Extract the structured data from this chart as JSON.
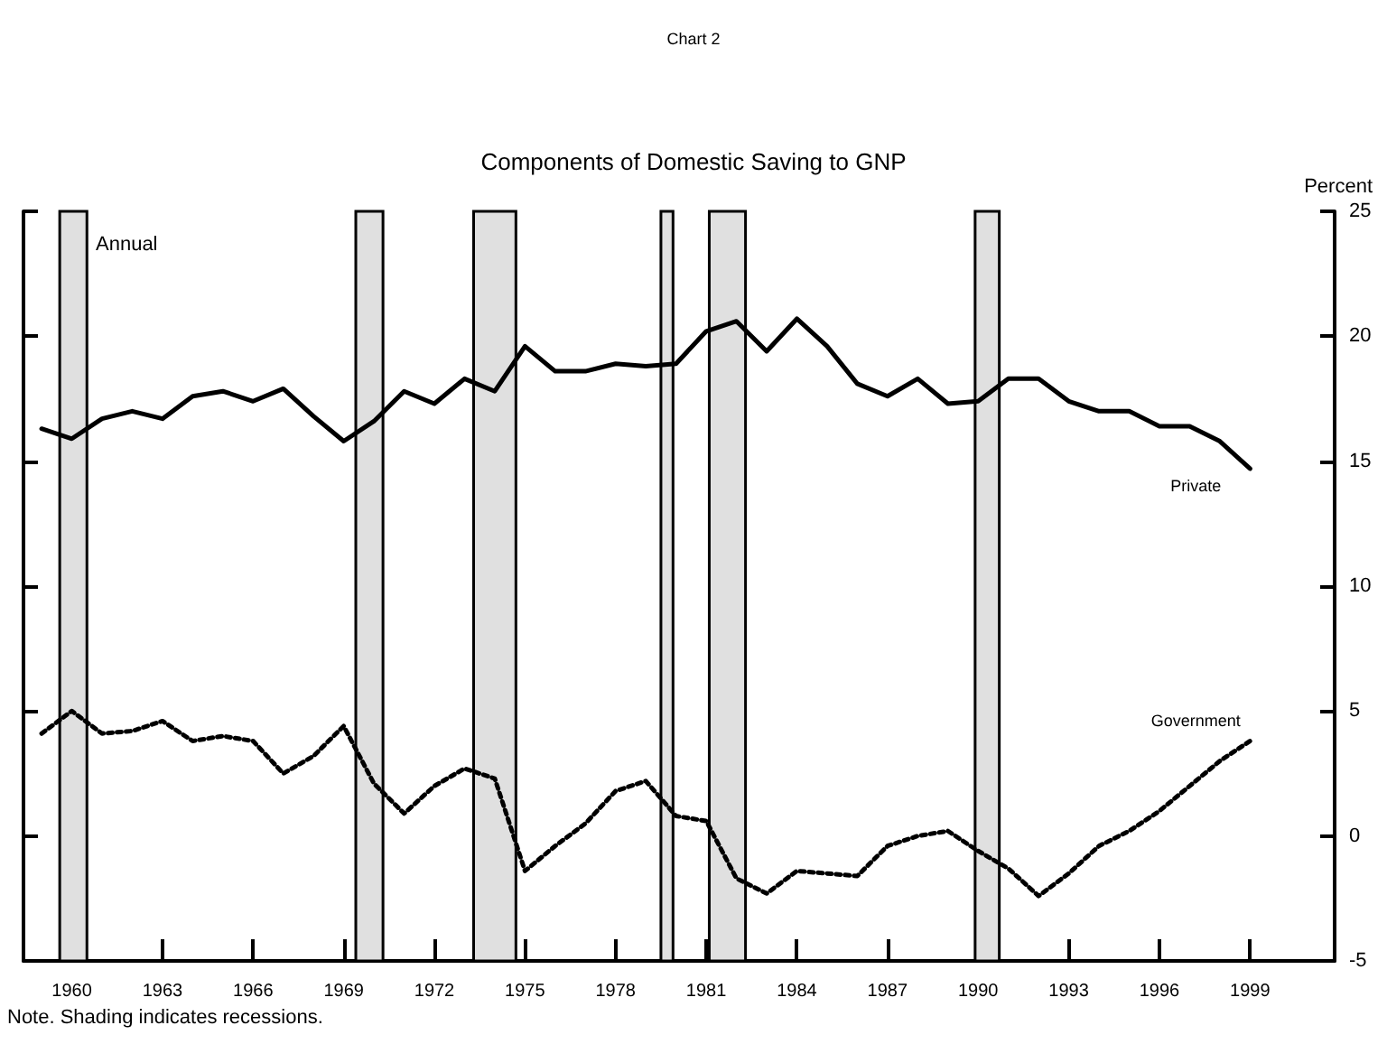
{
  "chart_data": {
    "type": "line",
    "title": "Chart 2",
    "subtitle": "Components of Domestic Saving to GNP",
    "ylabel": "Percent",
    "annotations": [
      "Annual",
      "Note. Shading indicates recessions."
    ],
    "x": [
      1959,
      1960,
      1961,
      1962,
      1963,
      1964,
      1965,
      1966,
      1967,
      1968,
      1969,
      1970,
      1971,
      1972,
      1973,
      1974,
      1975,
      1976,
      1977,
      1978,
      1979,
      1980,
      1981,
      1982,
      1983,
      1984,
      1985,
      1986,
      1987,
      1988,
      1989,
      1990,
      1991,
      1992,
      1993,
      1994,
      1995,
      1996,
      1997,
      1998,
      1999
    ],
    "series": [
      {
        "name": "Private",
        "color": "#000000",
        "line_style": "solid",
        "values": [
          16.3,
          15.9,
          16.7,
          17.0,
          16.7,
          17.6,
          17.8,
          17.4,
          17.9,
          16.8,
          15.8,
          16.6,
          17.8,
          17.3,
          18.3,
          17.8,
          19.6,
          18.6,
          18.6,
          18.9,
          18.8,
          18.9,
          20.2,
          20.6,
          19.4,
          20.7,
          19.6,
          18.1,
          17.6,
          18.3,
          17.3,
          17.4,
          18.3,
          18.3,
          17.4,
          17.0,
          17.0,
          16.4,
          16.4,
          15.8,
          14.7
        ]
      },
      {
        "name": "Government",
        "color": "#000000",
        "line_style": "dotted",
        "values": [
          4.1,
          5.0,
          4.1,
          4.2,
          4.6,
          3.8,
          4.0,
          3.8,
          2.5,
          3.2,
          4.4,
          2.1,
          0.9,
          2.0,
          2.7,
          2.3,
          -1.4,
          -0.4,
          0.5,
          1.8,
          2.2,
          0.8,
          0.6,
          -1.7,
          -2.3,
          -1.4,
          -1.5,
          -1.6,
          -0.4,
          0.0,
          0.2,
          -0.6,
          -1.3,
          -2.4,
          -1.5,
          -0.4,
          0.2,
          1.0,
          2.0,
          3.0,
          3.8
        ]
      }
    ],
    "xlim": [
      1958.4,
      2001.8
    ],
    "xticks": [
      1960,
      1963,
      1966,
      1969,
      1972,
      1975,
      1978,
      1981,
      1984,
      1987,
      1990,
      1993,
      1996,
      1999
    ],
    "ylim": [
      -5,
      25
    ],
    "yticks": [
      -5,
      0,
      5,
      10,
      15,
      20,
      25
    ],
    "bands": [
      {
        "axis": "x",
        "from": 1959.6,
        "to": 1960.5,
        "color": "#e0e0e0"
      },
      {
        "axis": "x",
        "from": 1969.4,
        "to": 1970.3,
        "color": "#e0e0e0"
      },
      {
        "axis": "x",
        "from": 1973.3,
        "to": 1974.7,
        "color": "#e0e0e0"
      },
      {
        "axis": "x",
        "from": 1979.5,
        "to": 1979.9,
        "color": "#e0e0e0"
      },
      {
        "axis": "x",
        "from": 1981.1,
        "to": 1982.3,
        "color": "#e0e0e0"
      },
      {
        "axis": "x",
        "from": 1989.9,
        "to": 1990.7,
        "color": "#e0e0e0"
      }
    ],
    "marker": "none",
    "grid": false,
    "legend": false
  }
}
